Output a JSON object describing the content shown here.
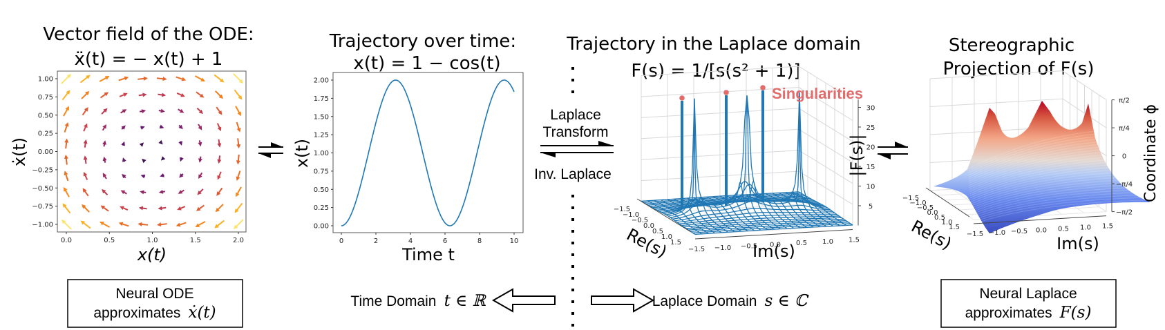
{
  "panels": {
    "vector_field": {
      "title_line1": "Vector field of the ODE:",
      "title_line2": "ẍ(t) = − x(t) + 1",
      "xlabel": "x(t)",
      "ylabel": "ẋ(t)",
      "xticks": [
        "0.0",
        "0.5",
        "1.0",
        "1.5",
        "2.0"
      ],
      "yticks": [
        "1.00",
        "0.75",
        "0.50",
        "0.25",
        "0.00",
        "−0.25",
        "−0.50",
        "−0.75",
        "−1.00"
      ]
    },
    "trajectory": {
      "title_line1": "Trajectory over time:",
      "title_line2": "x(t) = 1 − cos(t)",
      "xlabel": "Time t",
      "ylabel": "x(t)",
      "xticks": [
        "0",
        "2",
        "4",
        "6",
        "8",
        "10"
      ],
      "yticks": [
        "2.00",
        "1.75",
        "1.50",
        "1.25",
        "1.00",
        "0.75",
        "0.50",
        "0.25",
        "0.00"
      ],
      "line_color": "#1f77b4"
    },
    "laplace": {
      "title_line1": "Trajectory in the Laplace domain",
      "title_line2": "F(s) = 1/[s(s² + 1)]",
      "annotation": "Singularities",
      "annotation_color": "#e06c6c",
      "xlabel": "Re(s)",
      "ylabel": "Im(s)",
      "zlabel": "|F(s)|",
      "re_ticks": [
        "−1.5",
        "−1.0",
        "−0.5",
        "0.0",
        "0.5",
        "1.0",
        "1.5"
      ],
      "im_ticks": [
        "−1.5",
        "−1.0",
        "−0.5",
        "0.0",
        "0.5",
        "1.0",
        "1.5"
      ],
      "zticks": [
        "30",
        "25",
        "20",
        "15",
        "10",
        "5"
      ],
      "mesh_color": "#1f77b4"
    },
    "stereographic": {
      "title_line1": "Stereographic",
      "title_line2": "Projection of F(s)",
      "xlabel": "Re(s)",
      "ylabel": "Im(s)",
      "zlabel": "Coordinate ϕ",
      "re_ticks": [
        "−1.5",
        "−1.0",
        "−0.5",
        "0.0",
        "0.5",
        "1.0",
        "1.5"
      ],
      "im_ticks": [
        "−1.5",
        "−1.0",
        "−0.5",
        "0.0",
        "0.5",
        "1.0",
        "1.5"
      ],
      "zticks": [
        "π/2",
        "π/4",
        "0",
        "−π/4",
        "−π/2"
      ],
      "colormap": [
        "#3b4cc0",
        "#7b9ff9",
        "#c0d4f5",
        "#dddddd",
        "#f2cbb7",
        "#ee8468",
        "#b40426"
      ]
    }
  },
  "transform": {
    "forward_line1": "Laplace",
    "forward_line2": "Transform",
    "inverse": "Inv. Laplace"
  },
  "domains": {
    "time": "Time Domain",
    "time_math": "t ∈ ℝ",
    "laplace": "Laplace Domain",
    "laplace_math": "s ∈ ℂ"
  },
  "boxes": {
    "neural_ode_line1": "Neural ODE",
    "neural_ode_line2": "approximates",
    "neural_ode_math": "ẋ(t)",
    "neural_laplace_line1": "Neural Laplace",
    "neural_laplace_line2": "approximates",
    "neural_laplace_math": "F(s)"
  },
  "chart_data": [
    {
      "type": "quiver",
      "title": "Vector field of the ODE: ẍ(t) = −x(t) + 1",
      "xlabel": "x(t)",
      "ylabel": "ẋ(t)",
      "xlim": [
        -0.1,
        2.1
      ],
      "ylim": [
        -1.1,
        1.1
      ],
      "grid": {
        "nx": 10,
        "ny": 10,
        "x_range": [
          0,
          2
        ],
        "y_range": [
          -1,
          1
        ]
      },
      "field": "dx = y, dy = -x + 1",
      "colormap": "inferno (magnitude)"
    },
    {
      "type": "line",
      "title": "Trajectory over time: x(t) = 1 − cos(t)",
      "xlabel": "Time t",
      "ylabel": "x(t)",
      "xlim": [
        0,
        10
      ],
      "ylim": [
        0,
        2
      ],
      "x": [
        0,
        1,
        2,
        3,
        3.14,
        4,
        5,
        6,
        6.28,
        7,
        8,
        9,
        9.42,
        10
      ],
      "values": [
        0,
        0.46,
        1.42,
        1.99,
        2.0,
        1.65,
        0.72,
        0.04,
        0.0,
        0.25,
        1.15,
        1.91,
        2.0,
        1.84
      ]
    },
    {
      "type": "surface",
      "title": "Trajectory in the Laplace domain F(s) = 1/[s(s² + 1)]",
      "xlabel": "Re(s)",
      "ylabel": "Im(s)",
      "zlabel": "|F(s)|",
      "xlim": [
        -1.5,
        1.5
      ],
      "ylim": [
        -1.5,
        1.5
      ],
      "zlim": [
        0,
        30
      ],
      "singularities": [
        {
          "re": 0,
          "im": -1
        },
        {
          "re": 0,
          "im": 0
        },
        {
          "re": 0,
          "im": 1
        }
      ],
      "annotation": "Singularities"
    },
    {
      "type": "surface",
      "title": "Stereographic Projection of F(s)",
      "xlabel": "Re(s)",
      "ylabel": "Im(s)",
      "zlabel": "Coordinate ϕ",
      "xlim": [
        -1.5,
        1.5
      ],
      "ylim": [
        -1.5,
        1.5
      ],
      "zlim": [
        "−π/2",
        "π/2"
      ],
      "colormap": "coolwarm"
    }
  ]
}
